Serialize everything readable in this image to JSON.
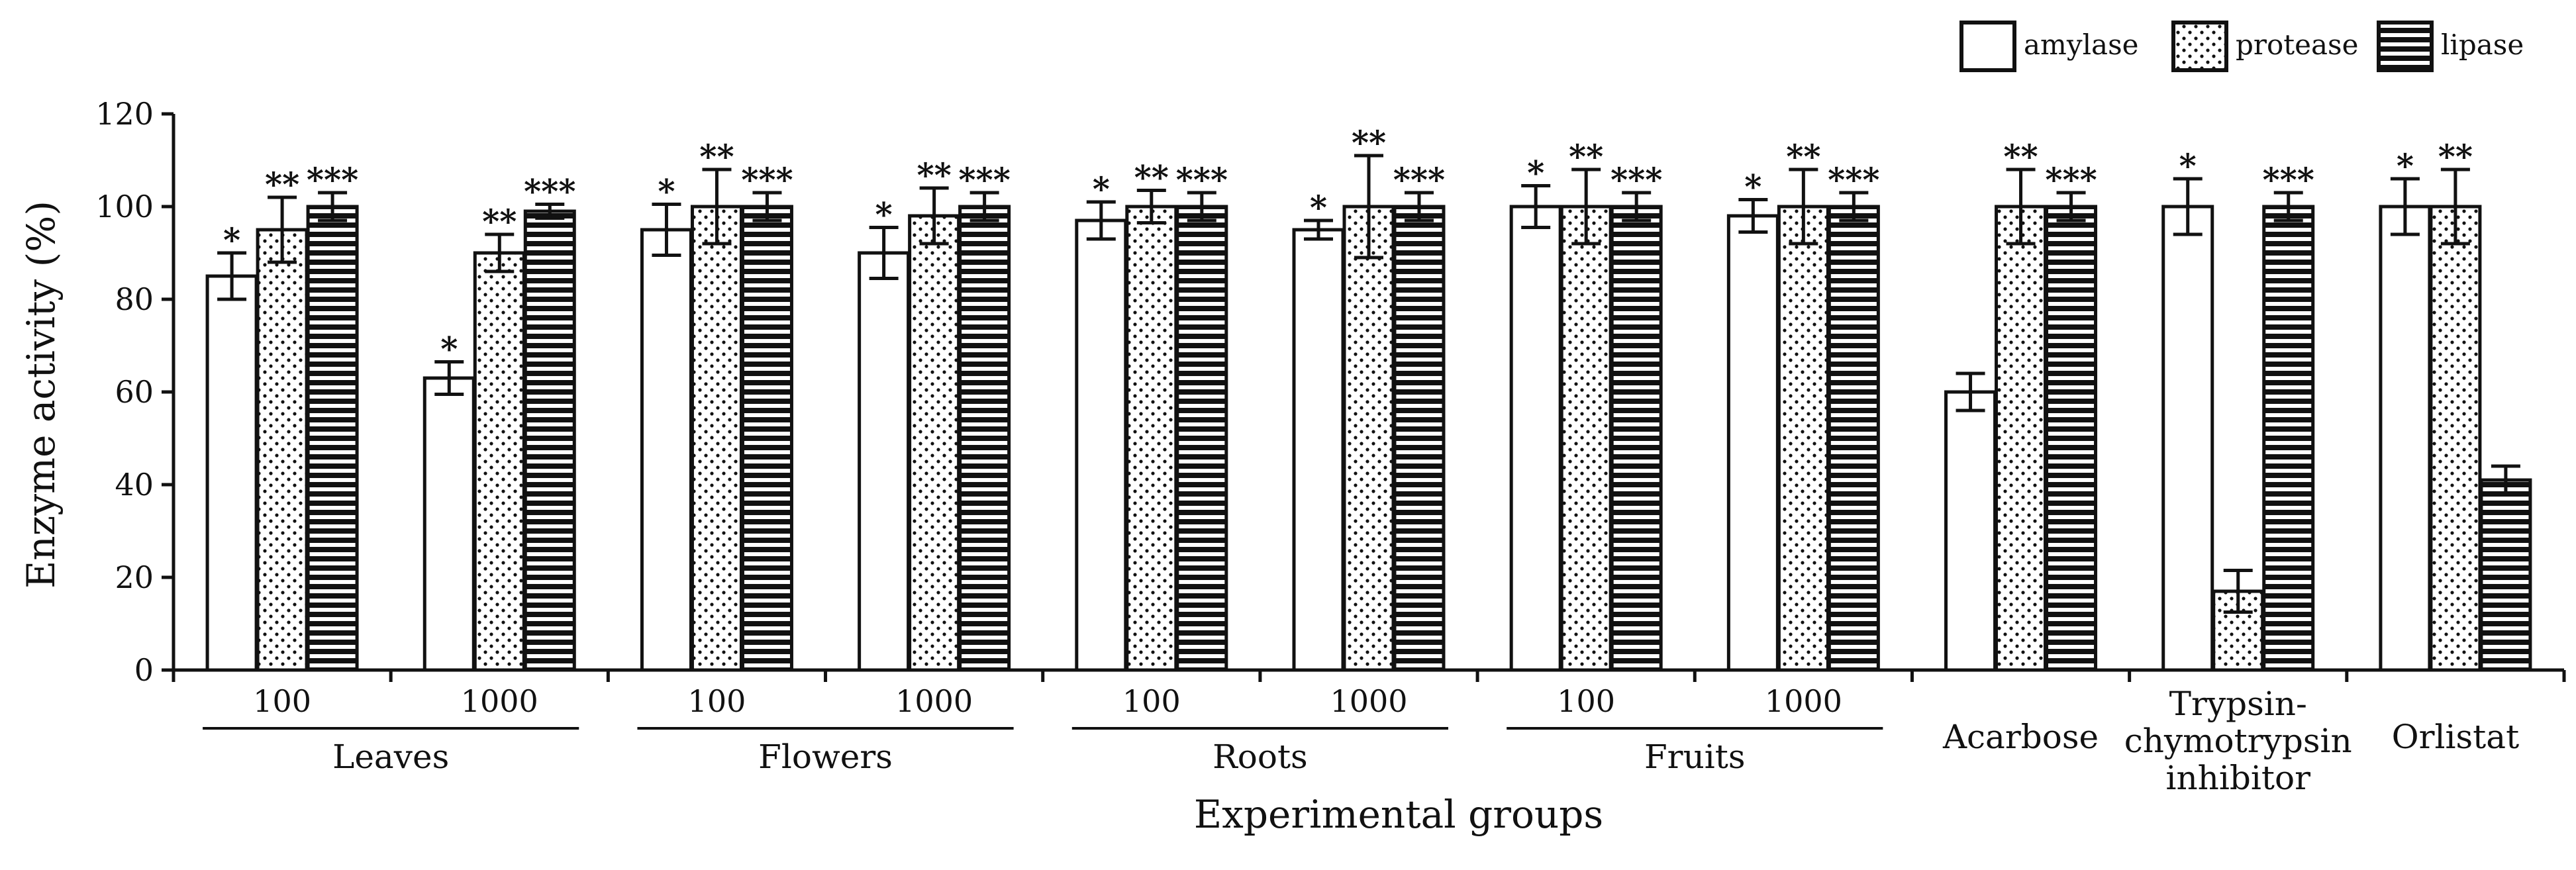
{
  "chart_data": {
    "type": "bar",
    "title": "",
    "xlabel": "Experimental groups",
    "ylabel": "Enzyme activity (%)",
    "ylim": [
      0,
      120
    ],
    "yticks": [
      "0",
      "20",
      "40",
      "60",
      "80",
      "100",
      "120"
    ],
    "legend": {
      "placement": "top-right",
      "entries": [
        {
          "name": "amylase",
          "pattern": "plain"
        },
        {
          "name": "protease",
          "pattern": "dots"
        },
        {
          "name": "lipase",
          "pattern": "stripes"
        }
      ]
    },
    "series_names": [
      "amylase",
      "protease",
      "lipase"
    ],
    "groups": [
      {
        "label": "100",
        "bars": [
          {
            "series": "amylase",
            "value": 85,
            "error": 5,
            "sig": "*"
          },
          {
            "series": "protease",
            "value": 95,
            "error": 7,
            "sig": "**"
          },
          {
            "series": "lipase",
            "value": 100,
            "error": 3,
            "sig": "***"
          }
        ]
      },
      {
        "label": "1000",
        "bars": [
          {
            "series": "amylase",
            "value": 63,
            "error": 3.5,
            "sig": "*"
          },
          {
            "series": "protease",
            "value": 90,
            "error": 4,
            "sig": "**"
          },
          {
            "series": "lipase",
            "value": 99,
            "error": 1.5,
            "sig": "***"
          }
        ]
      },
      {
        "label": "100",
        "bars": [
          {
            "series": "amylase",
            "value": 95,
            "error": 5.5,
            "sig": "*"
          },
          {
            "series": "protease",
            "value": 100,
            "error": 8,
            "sig": "**"
          },
          {
            "series": "lipase",
            "value": 100,
            "error": 3,
            "sig": "***"
          }
        ]
      },
      {
        "label": "1000",
        "bars": [
          {
            "series": "amylase",
            "value": 90,
            "error": 5.5,
            "sig": "*"
          },
          {
            "series": "protease",
            "value": 98,
            "error": 6,
            "sig": "**"
          },
          {
            "series": "lipase",
            "value": 100,
            "error": 3,
            "sig": "***"
          }
        ]
      },
      {
        "label": "100",
        "bars": [
          {
            "series": "amylase",
            "value": 97,
            "error": 4,
            "sig": "*"
          },
          {
            "series": "protease",
            "value": 100,
            "error": 3.5,
            "sig": "**"
          },
          {
            "series": "lipase",
            "value": 100,
            "error": 3,
            "sig": "***"
          }
        ]
      },
      {
        "label": "1000",
        "bars": [
          {
            "series": "amylase",
            "value": 95,
            "error": 2,
            "sig": "*"
          },
          {
            "series": "protease",
            "value": 100,
            "error": 11,
            "sig": "**"
          },
          {
            "series": "lipase",
            "value": 100,
            "error": 3,
            "sig": "***"
          }
        ]
      },
      {
        "label": "100",
        "bars": [
          {
            "series": "amylase",
            "value": 100,
            "error": 4.5,
            "sig": "*"
          },
          {
            "series": "protease",
            "value": 100,
            "error": 8,
            "sig": "**"
          },
          {
            "series": "lipase",
            "value": 100,
            "error": 3,
            "sig": "***"
          }
        ]
      },
      {
        "label": "1000",
        "bars": [
          {
            "series": "amylase",
            "value": 98,
            "error": 3.5,
            "sig": "*"
          },
          {
            "series": "protease",
            "value": 100,
            "error": 8,
            "sig": "**"
          },
          {
            "series": "lipase",
            "value": 100,
            "error": 3,
            "sig": "***"
          }
        ]
      },
      {
        "label": "Acarbose",
        "bars": [
          {
            "series": "amylase",
            "value": 60,
            "error": 4,
            "sig": ""
          },
          {
            "series": "protease",
            "value": 100,
            "error": 8,
            "sig": "**"
          },
          {
            "series": "lipase",
            "value": 100,
            "error": 3,
            "sig": "***"
          }
        ]
      },
      {
        "label": "Trypsin-chymotrypsin inhibitor",
        "label_lines": [
          "Trypsin-",
          "chymotrypsin",
          "inhibitor"
        ],
        "bars": [
          {
            "series": "amylase",
            "value": 100,
            "error": 6,
            "sig": "*"
          },
          {
            "series": "protease",
            "value": 17,
            "error": 4.5,
            "sig": ""
          },
          {
            "series": "lipase",
            "value": 100,
            "error": 3,
            "sig": "***"
          }
        ]
      },
      {
        "label": "Orlistat",
        "bars": [
          {
            "series": "amylase",
            "value": 100,
            "error": 6,
            "sig": "*"
          },
          {
            "series": "protease",
            "value": 100,
            "error": 8,
            "sig": "**"
          },
          {
            "series": "lipase",
            "value": 41,
            "error": 3,
            "sig": ""
          }
        ]
      }
    ],
    "supergroups": [
      {
        "label": "Leaves",
        "from_group": 0,
        "to_group": 1
      },
      {
        "label": "Flowers",
        "from_group": 2,
        "to_group": 3
      },
      {
        "label": "Roots",
        "from_group": 4,
        "to_group": 5
      },
      {
        "label": "Fruits",
        "from_group": 6,
        "to_group": 7
      }
    ]
  }
}
